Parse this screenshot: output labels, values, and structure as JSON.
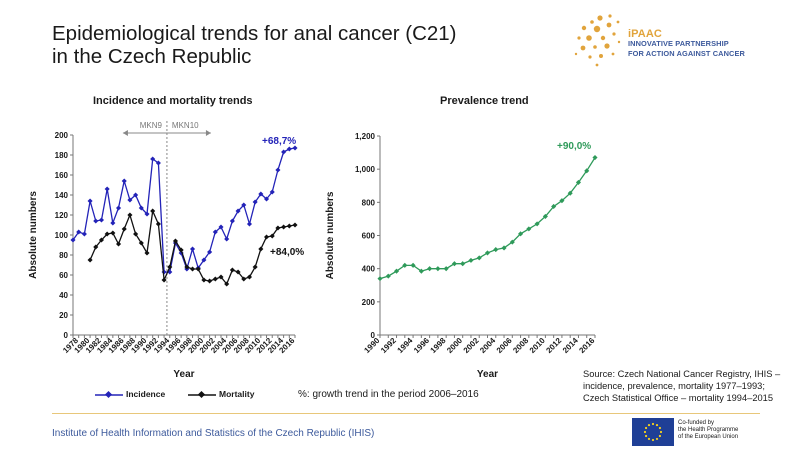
{
  "header": {
    "title_line1": "Epidemiological trends for anal cancer (C21)",
    "title_line2": "in the Czech Republic"
  },
  "logo": {
    "brand": "iPAAC",
    "line1": "INNOVATIVE PARTNERSHIP",
    "line2": "FOR ACTION AGAINST CANCER"
  },
  "chart_data": [
    {
      "type": "line",
      "title": "Incidence and mortality trends",
      "xlabel": "Year",
      "ylabel": "Absolute numbers",
      "ylim": [
        0,
        200
      ],
      "yticks": [
        0,
        20,
        40,
        60,
        80,
        100,
        120,
        140,
        160,
        180,
        200
      ],
      "xticks": [
        "1978",
        "1980",
        "1982",
        "1984",
        "1986",
        "1988",
        "1990",
        "1992",
        "1994",
        "1996",
        "1998",
        "2000",
        "2002",
        "2004",
        "2006",
        "2008",
        "2010",
        "2012",
        "2014",
        "2016"
      ],
      "annotations": {
        "mkn9": "MKN9",
        "mkn10": "MKN10",
        "incidence_growth": "+68,7%",
        "mortality_growth": "+84,0%"
      },
      "series": [
        {
          "name": "Incidence",
          "color": "#2323b8",
          "x": [
            1977,
            1978,
            1979,
            1980,
            1981,
            1982,
            1983,
            1984,
            1985,
            1986,
            1987,
            1988,
            1989,
            1990,
            1991,
            1992,
            1993,
            1994,
            1995,
            1996,
            1997,
            1998,
            1999,
            2000,
            2001,
            2002,
            2003,
            2004,
            2005,
            2006,
            2007,
            2008,
            2009,
            2010,
            2011,
            2012,
            2013,
            2014,
            2015,
            2016
          ],
          "values": [
            95,
            103,
            101,
            134,
            114,
            115,
            146,
            112,
            127,
            154,
            135,
            140,
            127,
            121,
            176,
            172,
            63,
            63,
            92,
            82,
            66,
            86,
            67,
            75,
            83,
            103,
            108,
            96,
            114,
            124,
            130,
            111,
            133,
            141,
            136,
            143,
            165,
            183,
            186,
            187
          ]
        },
        {
          "name": "Mortality",
          "color": "#111111",
          "x": [
            1980,
            1981,
            1982,
            1983,
            1984,
            1985,
            1986,
            1987,
            1988,
            1989,
            1990,
            1991,
            1992,
            1993,
            1994,
            1995,
            1996,
            1997,
            1998,
            1999,
            2000,
            2001,
            2002,
            2003,
            2004,
            2005,
            2006,
            2007,
            2008,
            2009,
            2010,
            2011,
            2012,
            2013,
            2014,
            2015,
            2016
          ],
          "values": [
            75,
            88,
            95,
            101,
            102,
            91,
            106,
            120,
            101,
            92,
            82,
            124,
            111,
            55,
            68,
            94,
            85,
            68,
            66,
            66,
            55,
            54,
            56,
            58,
            51,
            65,
            63,
            56,
            58,
            68,
            86,
            98,
            99,
            107,
            108,
            109,
            110
          ]
        }
      ]
    },
    {
      "type": "line",
      "title": "Prevalence trend",
      "xlabel": "Year",
      "ylabel": "Absolute numbers",
      "ylim": [
        0,
        1200
      ],
      "yticks": [
        "0",
        "200",
        "400",
        "600",
        "800",
        "1,000",
        "1,200"
      ],
      "xticks": [
        "1990",
        "1992",
        "1994",
        "1996",
        "1998",
        "2000",
        "2002",
        "2004",
        "2006",
        "2008",
        "2010",
        "2012",
        "2014",
        "2016"
      ],
      "annotations": {
        "growth": "+90,0%"
      },
      "series": [
        {
          "name": "Prevalence",
          "color": "#2f9a5a",
          "x": [
            1990,
            1991,
            1992,
            1993,
            1994,
            1995,
            1996,
            1997,
            1998,
            1999,
            2000,
            2001,
            2002,
            2003,
            2004,
            2005,
            2006,
            2007,
            2008,
            2009,
            2010,
            2011,
            2012,
            2013,
            2014,
            2015,
            2016
          ],
          "values": [
            340,
            355,
            385,
            420,
            420,
            385,
            400,
            400,
            400,
            430,
            430,
            450,
            465,
            495,
            515,
            525,
            560,
            610,
            640,
            670,
            715,
            775,
            810,
            855,
            920,
            990,
            1070
          ]
        }
      ]
    }
  ],
  "legend": {
    "incidence": "Incidence",
    "mortality": "Mortality"
  },
  "note": "%: growth trend in the period 2006–2016",
  "source": {
    "line1": "Source: Czech National Cancer Registry, IHIS –",
    "line2": "incidence, prevalence, mortality 1977–1993;",
    "line3": "Czech Statistical Office – mortality 1994–2015"
  },
  "footer": {
    "institute": "Institute of Health Information and Statistics of the Czech Republic (IHIS)",
    "eu_line1": "Co-funded by",
    "eu_line2": "the Health Programme",
    "eu_line3": "of the European Union"
  },
  "colors": {
    "incidence": "#2323b8",
    "mortality": "#111111",
    "prevalence": "#2f9a5a",
    "accent_gold": "#e1a43c",
    "brand_blue": "#3d5a9c"
  }
}
